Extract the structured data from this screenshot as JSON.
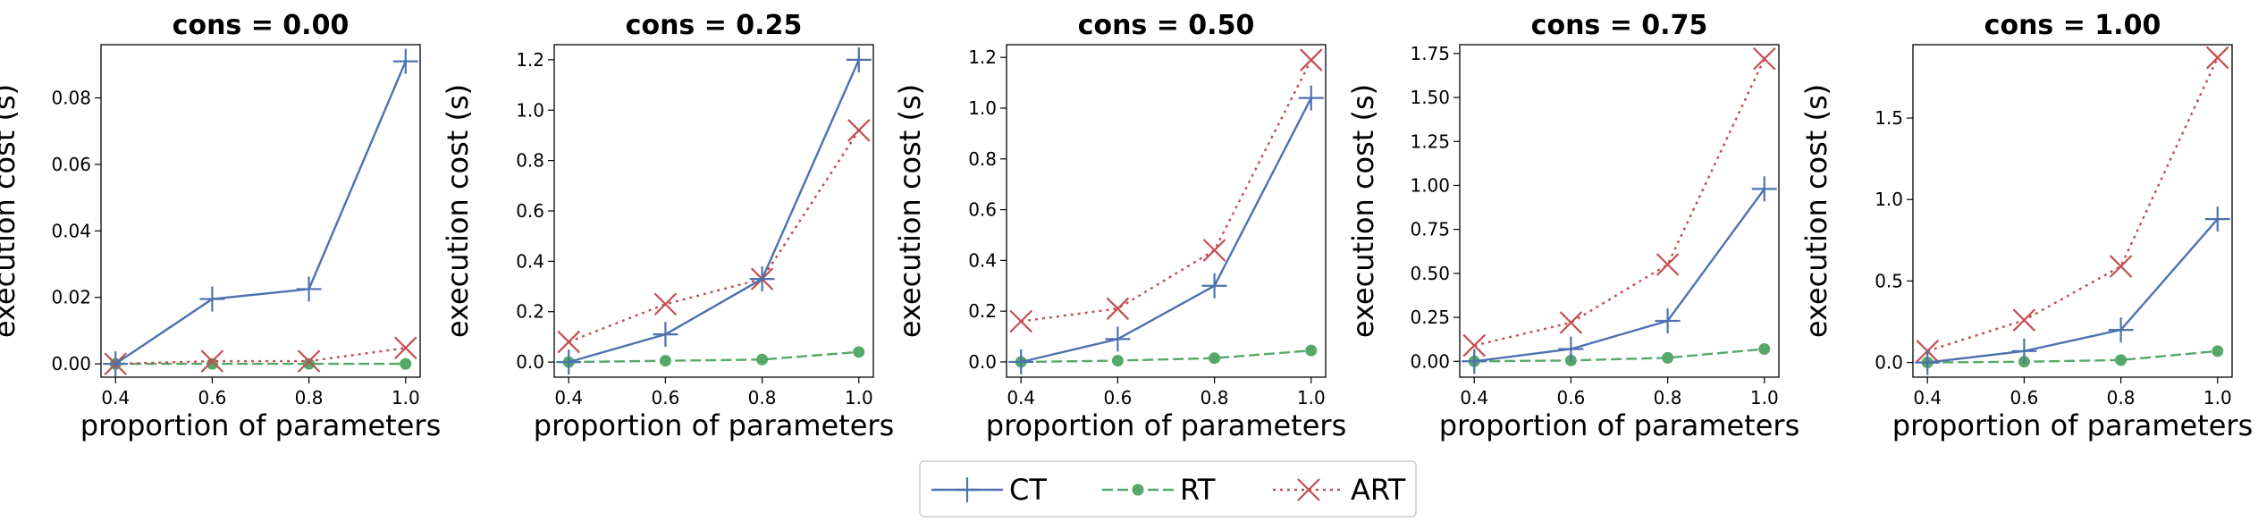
{
  "chart_data": [
    {
      "type": "line",
      "title": "cons = 0.00",
      "xlabel": "proportion of parameters",
      "ylabel": "execution cost (s)",
      "x": [
        0.4,
        0.6,
        0.8,
        1.0
      ],
      "xlim": [
        0.37,
        1.03
      ],
      "ylim": [
        -0.004,
        0.096
      ],
      "xticks": [
        0.4,
        0.6,
        0.8,
        1.0
      ],
      "xtick_labels": [
        "0.4",
        "0.6",
        "0.8",
        "1.0"
      ],
      "yticks": [
        0.0,
        0.02,
        0.04,
        0.06,
        0.08
      ],
      "ytick_labels": [
        "0.00",
        "0.02",
        "0.04",
        "0.06",
        "0.08"
      ],
      "series": [
        {
          "name": "CT",
          "values": [
            0.0,
            0.0195,
            0.0225,
            0.091
          ]
        },
        {
          "name": "RT",
          "values": [
            0.0,
            0.0,
            0.0,
            0.0
          ]
        },
        {
          "name": "ART",
          "values": [
            0.0,
            0.0008,
            0.0008,
            0.0048
          ]
        }
      ]
    },
    {
      "type": "line",
      "title": "cons = 0.25",
      "xlabel": "proportion of parameters",
      "ylabel": "execution cost (s)",
      "x": [
        0.4,
        0.6,
        0.8,
        1.0
      ],
      "xlim": [
        0.37,
        1.03
      ],
      "ylim": [
        -0.06,
        1.26
      ],
      "xticks": [
        0.4,
        0.6,
        0.8,
        1.0
      ],
      "xtick_labels": [
        "0.4",
        "0.6",
        "0.8",
        "1.0"
      ],
      "yticks": [
        0.0,
        0.2,
        0.4,
        0.6,
        0.8,
        1.0,
        1.2
      ],
      "ytick_labels": [
        "0.0",
        "0.2",
        "0.4",
        "0.6",
        "0.8",
        "1.0",
        "1.2"
      ],
      "series": [
        {
          "name": "CT",
          "values": [
            0.0,
            0.11,
            0.33,
            1.2
          ]
        },
        {
          "name": "RT",
          "values": [
            0.0,
            0.005,
            0.01,
            0.04
          ]
        },
        {
          "name": "ART",
          "values": [
            0.08,
            0.23,
            0.33,
            0.92
          ]
        }
      ]
    },
    {
      "type": "line",
      "title": "cons = 0.50",
      "xlabel": "proportion of parameters",
      "ylabel": "execution cost (s)",
      "x": [
        0.4,
        0.6,
        0.8,
        1.0
      ],
      "xlim": [
        0.37,
        1.03
      ],
      "ylim": [
        -0.06,
        1.25
      ],
      "xticks": [
        0.4,
        0.6,
        0.8,
        1.0
      ],
      "xtick_labels": [
        "0.4",
        "0.6",
        "0.8",
        "1.0"
      ],
      "yticks": [
        0.0,
        0.2,
        0.4,
        0.6,
        0.8,
        1.0,
        1.2
      ],
      "ytick_labels": [
        "0.0",
        "0.2",
        "0.4",
        "0.6",
        "0.8",
        "1.0",
        "1.2"
      ],
      "series": [
        {
          "name": "CT",
          "values": [
            0.0,
            0.09,
            0.3,
            1.04
          ]
        },
        {
          "name": "RT",
          "values": [
            0.0,
            0.005,
            0.015,
            0.045
          ]
        },
        {
          "name": "ART",
          "values": [
            0.16,
            0.21,
            0.44,
            1.19
          ]
        }
      ]
    },
    {
      "type": "line",
      "title": "cons = 0.75",
      "xlabel": "proportion of parameters",
      "ylabel": "execution cost (s)",
      "x": [
        0.4,
        0.6,
        0.8,
        1.0
      ],
      "xlim": [
        0.37,
        1.03
      ],
      "ylim": [
        -0.09,
        1.8
      ],
      "xticks": [
        0.4,
        0.6,
        0.8,
        1.0
      ],
      "xtick_labels": [
        "0.4",
        "0.6",
        "0.8",
        "1.0"
      ],
      "yticks": [
        0.0,
        0.25,
        0.5,
        0.75,
        1.0,
        1.25,
        1.5,
        1.75
      ],
      "ytick_labels": [
        "0.00",
        "0.25",
        "0.50",
        "0.75",
        "1.00",
        "1.25",
        "1.50",
        "1.75"
      ],
      "series": [
        {
          "name": "CT",
          "values": [
            0.0,
            0.07,
            0.23,
            0.98
          ]
        },
        {
          "name": "RT",
          "values": [
            0.0,
            0.005,
            0.02,
            0.07
          ]
        },
        {
          "name": "ART",
          "values": [
            0.09,
            0.22,
            0.55,
            1.72
          ]
        }
      ]
    },
    {
      "type": "line",
      "title": "cons = 1.00",
      "xlabel": "proportion of parameters",
      "ylabel": "execution cost (s)",
      "x": [
        0.4,
        0.6,
        0.8,
        1.0
      ],
      "xlim": [
        0.37,
        1.03
      ],
      "ylim": [
        -0.09,
        1.95
      ],
      "xticks": [
        0.4,
        0.6,
        0.8,
        1.0
      ],
      "xtick_labels": [
        "0.4",
        "0.6",
        "0.8",
        "1.0"
      ],
      "yticks": [
        0.0,
        0.5,
        1.0,
        1.5
      ],
      "ytick_labels": [
        "0.0",
        "0.5",
        "1.0",
        "1.5"
      ],
      "series": [
        {
          "name": "CT",
          "values": [
            0.0,
            0.07,
            0.2,
            0.88
          ]
        },
        {
          "name": "RT",
          "values": [
            0.0,
            0.005,
            0.015,
            0.07
          ]
        },
        {
          "name": "ART",
          "values": [
            0.07,
            0.26,
            0.59,
            1.87
          ]
        }
      ]
    }
  ],
  "legend": {
    "placement": "bottom-center",
    "entries": [
      {
        "label": "CT",
        "color": "#4c72b0",
        "marker": "plus",
        "line": "solid"
      },
      {
        "label": "RT",
        "color": "#55a868",
        "marker": "circle",
        "line": "dashed"
      },
      {
        "label": "ART",
        "color": "#c44e52",
        "marker": "x",
        "line": "dotted"
      }
    ]
  },
  "style": {
    "series_colors": {
      "CT": "#4c72b0",
      "RT": "#55a868",
      "ART": "#c44e52"
    },
    "series_markers": {
      "CT": "plus",
      "RT": "circle",
      "ART": "x"
    },
    "series_lines": {
      "CT": "solid",
      "RT": "dashed",
      "ART": "dotted"
    },
    "grid": false
  }
}
